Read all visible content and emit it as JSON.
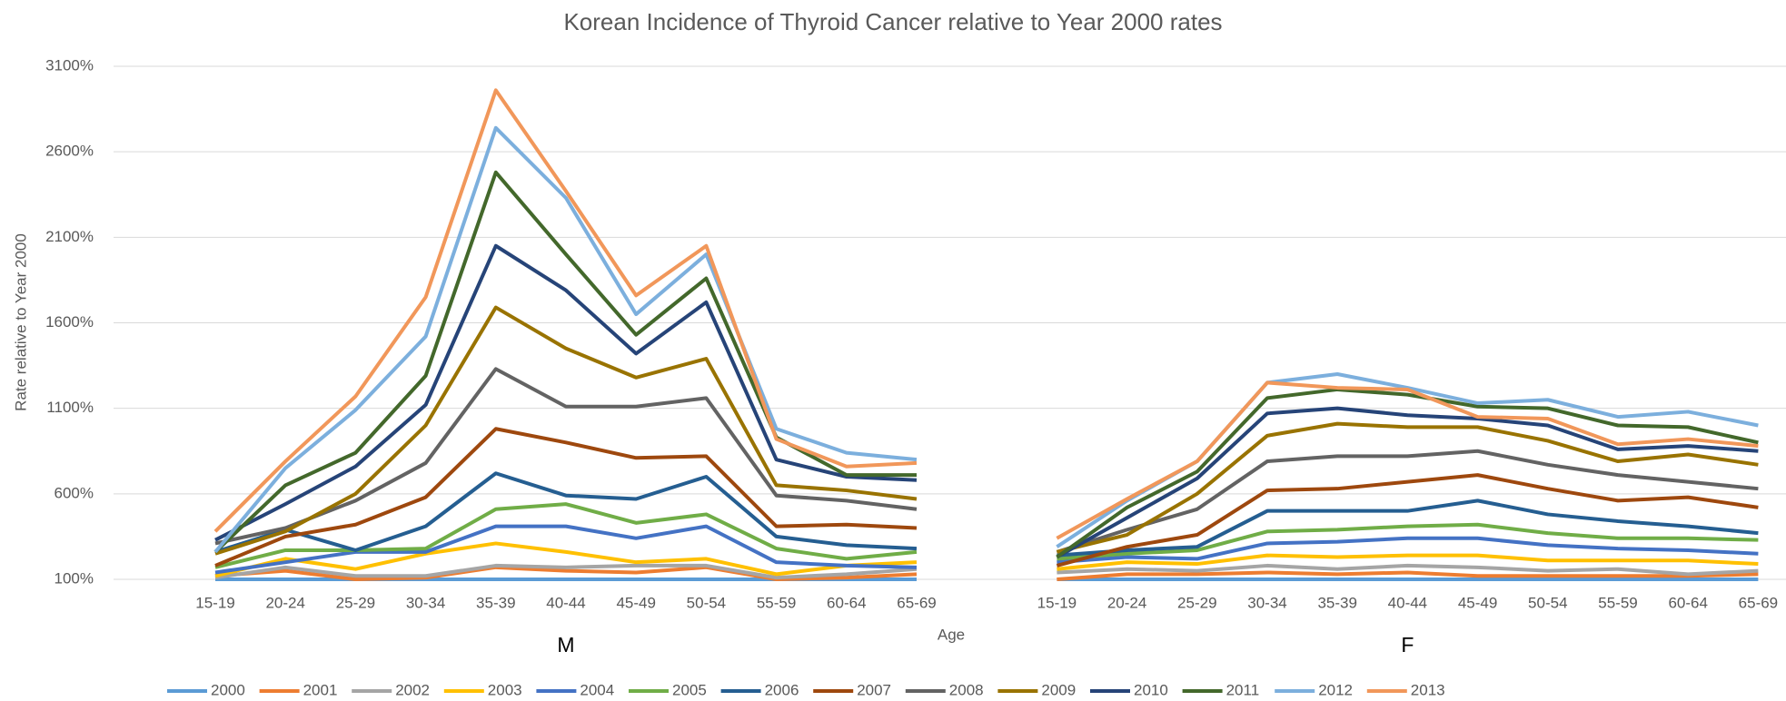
{
  "chart_data": {
    "type": "line",
    "title": "Korean Incidence of Thyroid Cancer relative to Year 2000 rates",
    "x_label": "Age",
    "y_label": "Rate relative to Year 2000",
    "group_labels": [
      "M",
      "F"
    ],
    "categories": [
      "15-19",
      "20-24",
      "25-29",
      "30-34",
      "35-39",
      "40-44",
      "45-49",
      "50-54",
      "55-59",
      "60-64",
      "65-69",
      null,
      "15-19",
      "20-24",
      "25-29",
      "30-34",
      "35-39",
      "40-44",
      "45-49",
      "50-54",
      "55-59",
      "60-64",
      "65-69"
    ],
    "ylim": [
      100,
      3100
    ],
    "yticks": [
      {
        "value": 100,
        "label": "100%"
      },
      {
        "value": 600,
        "label": "600%"
      },
      {
        "value": 1100,
        "label": "1100%"
      },
      {
        "value": 1600,
        "label": "1600%"
      },
      {
        "value": 2100,
        "label": "2100%"
      },
      {
        "value": 2600,
        "label": "2600%"
      },
      {
        "value": 3100,
        "label": "3100%"
      }
    ],
    "grid": true,
    "legend": "bottom",
    "series": [
      {
        "name": "2000",
        "color": "#5b9bd5",
        "values": [
          100,
          100,
          100,
          100,
          100,
          100,
          100,
          100,
          100,
          100,
          100,
          null,
          100,
          100,
          100,
          100,
          100,
          100,
          100,
          100,
          100,
          100,
          100
        ]
      },
      {
        "name": "2001",
        "color": "#ed7d31",
        "values": [
          120,
          150,
          100,
          110,
          170,
          150,
          140,
          170,
          100,
          110,
          130,
          null,
          100,
          130,
          130,
          140,
          130,
          140,
          120,
          120,
          120,
          120,
          130
        ]
      },
      {
        "name": "2002",
        "color": "#a5a5a5",
        "values": [
          110,
          170,
          120,
          120,
          180,
          170,
          180,
          180,
          110,
          130,
          160,
          null,
          140,
          160,
          150,
          180,
          160,
          180,
          170,
          150,
          160,
          130,
          150
        ]
      },
      {
        "name": "2003",
        "color": "#ffc000",
        "values": [
          120,
          220,
          160,
          250,
          310,
          260,
          200,
          220,
          130,
          180,
          200,
          null,
          160,
          200,
          190,
          240,
          230,
          240,
          240,
          210,
          210,
          210,
          190
        ]
      },
      {
        "name": "2004",
        "color": "#4472c4",
        "values": [
          140,
          200,
          260,
          260,
          410,
          410,
          340,
          410,
          200,
          180,
          170,
          null,
          200,
          230,
          220,
          310,
          320,
          340,
          340,
          300,
          280,
          270,
          250
        ]
      },
      {
        "name": "2005",
        "color": "#70ad47",
        "values": [
          170,
          270,
          270,
          280,
          510,
          540,
          430,
          480,
          280,
          220,
          260,
          null,
          220,
          250,
          270,
          380,
          390,
          410,
          420,
          370,
          340,
          340,
          330
        ]
      },
      {
        "name": "2006",
        "color": "#255e91",
        "values": [
          260,
          390,
          270,
          410,
          720,
          590,
          570,
          700,
          350,
          300,
          280,
          null,
          240,
          270,
          290,
          500,
          500,
          500,
          560,
          480,
          440,
          410,
          370
        ]
      },
      {
        "name": "2007",
        "color": "#9e480e",
        "values": [
          180,
          350,
          420,
          580,
          980,
          900,
          810,
          820,
          410,
          420,
          400,
          null,
          180,
          290,
          360,
          620,
          630,
          670,
          710,
          630,
          560,
          580,
          520
        ]
      },
      {
        "name": "2008",
        "color": "#636363",
        "values": [
          310,
          400,
          560,
          780,
          1330,
          1110,
          1110,
          1160,
          590,
          560,
          510,
          null,
          260,
          390,
          510,
          790,
          820,
          820,
          850,
          770,
          710,
          670,
          630
        ]
      },
      {
        "name": "2009",
        "color": "#997300",
        "values": [
          250,
          380,
          600,
          1000,
          1690,
          1450,
          1280,
          1390,
          650,
          620,
          570,
          null,
          260,
          360,
          600,
          940,
          1010,
          990,
          990,
          910,
          790,
          830,
          770
        ]
      },
      {
        "name": "2010",
        "color": "#264478",
        "values": [
          330,
          540,
          760,
          1120,
          2050,
          1790,
          1420,
          1720,
          800,
          700,
          680,
          null,
          230,
          460,
          690,
          1070,
          1100,
          1060,
          1040,
          1000,
          860,
          880,
          850
        ]
      },
      {
        "name": "2011",
        "color": "#43682b",
        "values": [
          260,
          650,
          840,
          1290,
          2480,
          2000,
          1530,
          1860,
          930,
          710,
          710,
          null,
          230,
          520,
          730,
          1160,
          1210,
          1180,
          1110,
          1100,
          1000,
          990,
          900
        ]
      },
      {
        "name": "2012",
        "color": "#7cafdd",
        "values": [
          260,
          750,
          1090,
          1520,
          2740,
          2330,
          1650,
          2000,
          980,
          840,
          800,
          null,
          290,
          560,
          790,
          1250,
          1300,
          1220,
          1130,
          1150,
          1050,
          1080,
          1000
        ]
      },
      {
        "name": "2013",
        "color": "#f1975a",
        "values": [
          380,
          790,
          1170,
          1750,
          2960,
          2370,
          1760,
          2050,
          920,
          760,
          780,
          null,
          340,
          570,
          790,
          1250,
          1220,
          1210,
          1050,
          1040,
          890,
          920,
          880
        ]
      }
    ]
  }
}
